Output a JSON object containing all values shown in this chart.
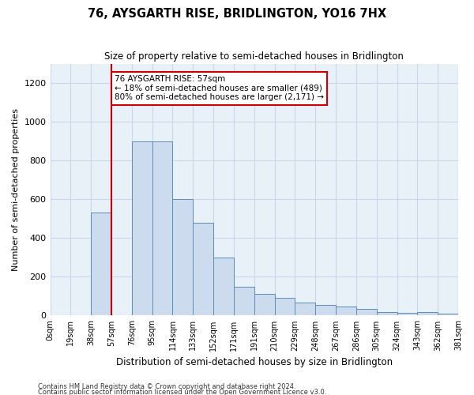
{
  "title": "76, AYSGARTH RISE, BRIDLINGTON, YO16 7HX",
  "subtitle": "Size of property relative to semi-detached houses in Bridlington",
  "xlabel": "Distribution of semi-detached houses by size in Bridlington",
  "ylabel": "Number of semi-detached properties",
  "annotation_line1": "76 AYSGARTH RISE: 57sqm",
  "annotation_line2": "← 18% of semi-detached houses are smaller (489)",
  "annotation_line3": "80% of semi-detached houses are larger (2,171) →",
  "footer_line1": "Contains HM Land Registry data © Crown copyright and database right 2024.",
  "footer_line2": "Contains public sector information licensed under the Open Government Licence v3.0.",
  "property_size_sqm": 57,
  "bin_size": 19,
  "tick_labels": [
    "0sqm",
    "19sqm",
    "38sqm",
    "57sqm",
    "76sqm",
    "95sqm",
    "114sqm",
    "133sqm",
    "152sqm",
    "171sqm",
    "191sqm",
    "210sqm",
    "229sqm",
    "248sqm",
    "267sqm",
    "286sqm",
    "305sqm",
    "324sqm",
    "343sqm",
    "362sqm",
    "381sqm"
  ],
  "bar_values": [
    0,
    0,
    530,
    0,
    900,
    900,
    600,
    480,
    300,
    150,
    110,
    90,
    65,
    55,
    45,
    35,
    20,
    15,
    20,
    10
  ],
  "bar_color": "#ccdcee",
  "bar_edge_color": "#5b8db8",
  "highlight_color": "#cc0000",
  "annotation_box_color": "#cc0000",
  "grid_color": "#c8d8e8",
  "background_color": "#e8f0f8",
  "ylim": [
    0,
    1300
  ],
  "yticks": [
    0,
    200,
    400,
    600,
    800,
    1000,
    1200
  ]
}
